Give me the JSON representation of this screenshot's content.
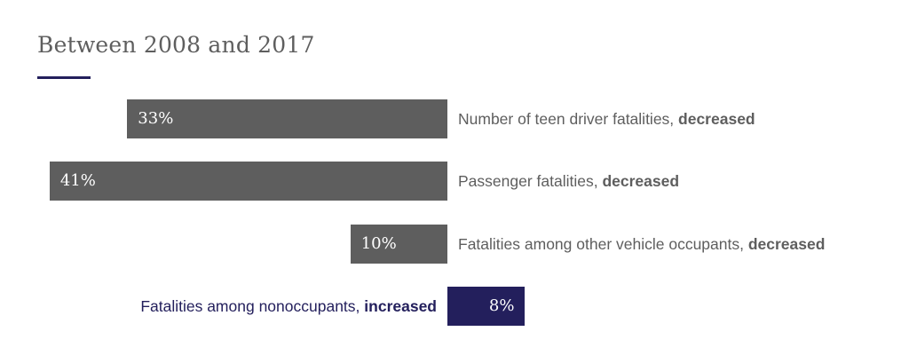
{
  "chart_data": {
    "type": "bar",
    "orientation": "horizontal-diverging",
    "title": "Between 2008 and 2017",
    "unit": "%",
    "colors": {
      "decreased": "#5e5e5e",
      "increased": "#231f5c",
      "accent_rule": "#231f5c"
    },
    "categories": [
      {
        "text": "Number of teen driver fatalities, ",
        "emphasis": "decreased"
      },
      {
        "text": "Passenger fatalities, ",
        "emphasis": "decreased"
      },
      {
        "text": "Fatalities among other vehicle occupants, ",
        "emphasis": "decreased"
      },
      {
        "text": "Fatalities among nonoccupants, ",
        "emphasis": "increased"
      }
    ],
    "values": [
      -33,
      -41,
      -10,
      8
    ],
    "value_labels": [
      "33%",
      "41%",
      "10%",
      "8%"
    ]
  }
}
